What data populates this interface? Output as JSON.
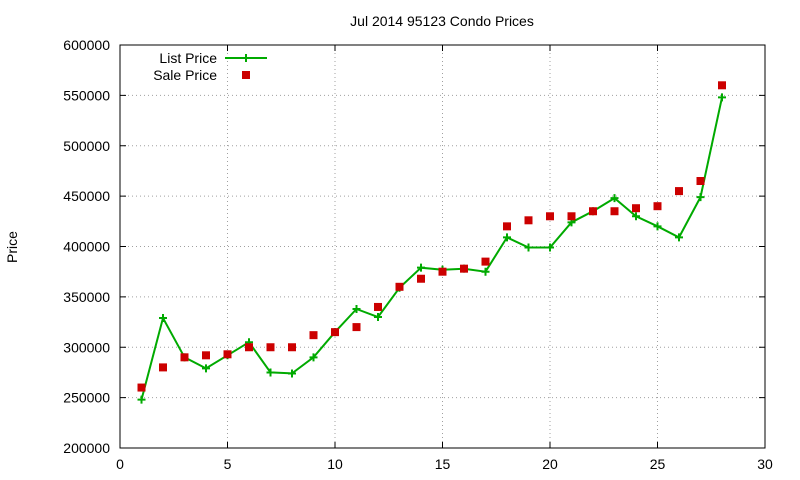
{
  "chart_data": {
    "type": "line",
    "title": "Jul 2014 95123 Condo Prices",
    "xlabel": "",
    "ylabel": "Price",
    "xlim": [
      0,
      30
    ],
    "ylim": [
      200000,
      600000
    ],
    "xticks": [
      0,
      5,
      10,
      15,
      20,
      25,
      30
    ],
    "yticks": [
      200000,
      250000,
      300000,
      350000,
      400000,
      450000,
      500000,
      550000,
      600000
    ],
    "grid": true,
    "legend_position": "top-left",
    "x": [
      1,
      2,
      3,
      4,
      5,
      6,
      7,
      8,
      9,
      10,
      11,
      12,
      13,
      14,
      15,
      16,
      17,
      18,
      19,
      20,
      21,
      22,
      23,
      24,
      25,
      26,
      27,
      28
    ],
    "series": [
      {
        "name": "List Price",
        "style": "line-with-plus-markers",
        "color": "#00aa00",
        "values": [
          248000,
          329000,
          290000,
          279000,
          292000,
          305000,
          275000,
          274000,
          290000,
          315000,
          338000,
          330000,
          359000,
          379000,
          377000,
          378000,
          375000,
          409000,
          399000,
          399000,
          424000,
          435000,
          448000,
          430000,
          420000,
          409000,
          449000,
          548000
        ]
      },
      {
        "name": "Sale Price",
        "style": "square-markers",
        "color": "#cc0000",
        "values": [
          260000,
          280000,
          290000,
          292000,
          293000,
          300000,
          300000,
          300000,
          312000,
          315000,
          320000,
          340000,
          360000,
          368000,
          375000,
          378000,
          385000,
          420000,
          426000,
          430000,
          430000,
          435000,
          435000,
          438000,
          440000,
          455000,
          465000,
          560000
        ]
      }
    ]
  }
}
